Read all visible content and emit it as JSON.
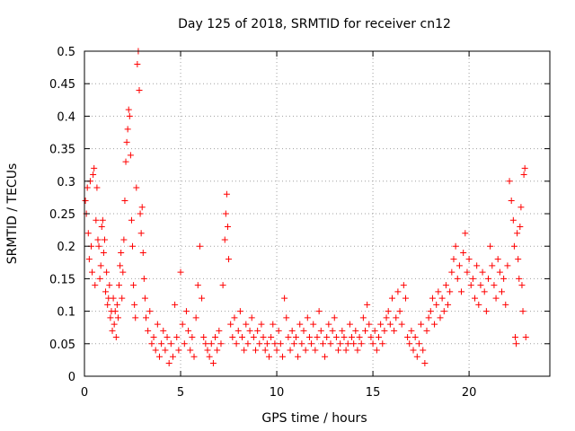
{
  "chart_data": {
    "type": "scatter",
    "title": "Day 125 of 2018, SRMTID for receiver cn12",
    "xlabel": "GPS time / hours",
    "ylabel": "SRMTID / TECUs",
    "xlim": [
      0,
      24.2
    ],
    "ylim": [
      0,
      0.5
    ],
    "xticks": [
      0,
      5,
      10,
      15,
      20
    ],
    "yticks": [
      0,
      0.05,
      0.1,
      0.15,
      0.2,
      0.25,
      0.3,
      0.35,
      0.4,
      0.45,
      0.5
    ],
    "xtick_labels": [
      "0",
      "5",
      "10",
      "15",
      "20"
    ],
    "ytick_labels": [
      "0",
      "0.05",
      "0.1",
      "0.15",
      "0.2",
      "0.25",
      "0.3",
      "0.35",
      "0.4",
      "0.45",
      "0.5"
    ],
    "grid": true,
    "marker": "+",
    "color": "#ff0000",
    "series": [
      {
        "name": "SRMTID",
        "points": [
          [
            0.05,
            0.27
          ],
          [
            0.1,
            0.25
          ],
          [
            0.15,
            0.29
          ],
          [
            0.2,
            0.22
          ],
          [
            0.25,
            0.18
          ],
          [
            0.3,
            0.3
          ],
          [
            0.35,
            0.2
          ],
          [
            0.4,
            0.16
          ],
          [
            0.45,
            0.31
          ],
          [
            0.5,
            0.32
          ],
          [
            0.55,
            0.14
          ],
          [
            0.6,
            0.24
          ],
          [
            0.65,
            0.29
          ],
          [
            0.7,
            0.21
          ],
          [
            0.75,
            0.2
          ],
          [
            0.8,
            0.15
          ],
          [
            0.85,
            0.17
          ],
          [
            0.9,
            0.23
          ],
          [
            0.95,
            0.24
          ],
          [
            1.0,
            0.19
          ],
          [
            1.05,
            0.21
          ],
          [
            1.1,
            0.13
          ],
          [
            1.15,
            0.16
          ],
          [
            1.2,
            0.11
          ],
          [
            1.25,
            0.12
          ],
          [
            1.3,
            0.14
          ],
          [
            1.35,
            0.09
          ],
          [
            1.4,
            0.1
          ],
          [
            1.45,
            0.07
          ],
          [
            1.5,
            0.12
          ],
          [
            1.55,
            0.08
          ],
          [
            1.6,
            0.1
          ],
          [
            1.65,
            0.06
          ],
          [
            1.7,
            0.11
          ],
          [
            1.75,
            0.09
          ],
          [
            1.8,
            0.14
          ],
          [
            1.85,
            0.17
          ],
          [
            1.9,
            0.19
          ],
          [
            1.95,
            0.12
          ],
          [
            2.0,
            0.16
          ],
          [
            2.05,
            0.21
          ],
          [
            2.1,
            0.27
          ],
          [
            2.15,
            0.33
          ],
          [
            2.2,
            0.36
          ],
          [
            2.25,
            0.38
          ],
          [
            2.3,
            0.41
          ],
          [
            2.35,
            0.4
          ],
          [
            2.4,
            0.34
          ],
          [
            2.45,
            0.24
          ],
          [
            2.5,
            0.2
          ],
          [
            2.55,
            0.14
          ],
          [
            2.6,
            0.11
          ],
          [
            2.65,
            0.09
          ],
          [
            2.7,
            0.29
          ],
          [
            2.75,
            0.48
          ],
          [
            2.8,
            0.5
          ],
          [
            2.85,
            0.44
          ],
          [
            2.9,
            0.25
          ],
          [
            2.95,
            0.22
          ],
          [
            3.0,
            0.26
          ],
          [
            3.05,
            0.19
          ],
          [
            3.1,
            0.15
          ],
          [
            3.15,
            0.12
          ],
          [
            3.2,
            0.09
          ],
          [
            3.3,
            0.07
          ],
          [
            3.4,
            0.1
          ],
          [
            3.5,
            0.05
          ],
          [
            3.6,
            0.06
          ],
          [
            3.7,
            0.04
          ],
          [
            3.8,
            0.08
          ],
          [
            3.9,
            0.03
          ],
          [
            4.0,
            0.05
          ],
          [
            4.1,
            0.07
          ],
          [
            4.2,
            0.04
          ],
          [
            4.3,
            0.06
          ],
          [
            4.4,
            0.02
          ],
          [
            4.5,
            0.05
          ],
          [
            4.6,
            0.03
          ],
          [
            4.7,
            0.11
          ],
          [
            4.8,
            0.06
          ],
          [
            4.9,
            0.04
          ],
          [
            5.0,
            0.16
          ],
          [
            5.1,
            0.08
          ],
          [
            5.2,
            0.05
          ],
          [
            5.3,
            0.1
          ],
          [
            5.4,
            0.07
          ],
          [
            5.5,
            0.04
          ],
          [
            5.6,
            0.06
          ],
          [
            5.7,
            0.03
          ],
          [
            5.8,
            0.09
          ],
          [
            5.9,
            0.14
          ],
          [
            6.0,
            0.2
          ],
          [
            6.1,
            0.12
          ],
          [
            6.2,
            0.06
          ],
          [
            6.3,
            0.05
          ],
          [
            6.4,
            0.04
          ],
          [
            6.5,
            0.03
          ],
          [
            6.6,
            0.05
          ],
          [
            6.7,
            0.02
          ],
          [
            6.8,
            0.06
          ],
          [
            6.9,
            0.04
          ],
          [
            7.0,
            0.07
          ],
          [
            7.1,
            0.05
          ],
          [
            7.2,
            0.14
          ],
          [
            7.3,
            0.21
          ],
          [
            7.35,
            0.25
          ],
          [
            7.4,
            0.28
          ],
          [
            7.45,
            0.23
          ],
          [
            7.5,
            0.18
          ],
          [
            7.6,
            0.08
          ],
          [
            7.7,
            0.06
          ],
          [
            7.8,
            0.09
          ],
          [
            7.9,
            0.05
          ],
          [
            8.0,
            0.07
          ],
          [
            8.1,
            0.1
          ],
          [
            8.2,
            0.06
          ],
          [
            8.3,
            0.04
          ],
          [
            8.4,
            0.08
          ],
          [
            8.5,
            0.05
          ],
          [
            8.6,
            0.07
          ],
          [
            8.7,
            0.09
          ],
          [
            8.8,
            0.06
          ],
          [
            8.9,
            0.04
          ],
          [
            9.0,
            0.07
          ],
          [
            9.1,
            0.05
          ],
          [
            9.2,
            0.08
          ],
          [
            9.3,
            0.06
          ],
          [
            9.4,
            0.04
          ],
          [
            9.5,
            0.05
          ],
          [
            9.6,
            0.03
          ],
          [
            9.7,
            0.06
          ],
          [
            9.8,
            0.08
          ],
          [
            9.9,
            0.05
          ],
          [
            10.0,
            0.04
          ],
          [
            10.1,
            0.07
          ],
          [
            10.2,
            0.05
          ],
          [
            10.3,
            0.03
          ],
          [
            10.4,
            0.12
          ],
          [
            10.5,
            0.09
          ],
          [
            10.6,
            0.06
          ],
          [
            10.7,
            0.04
          ],
          [
            10.8,
            0.07
          ],
          [
            10.9,
            0.05
          ],
          [
            11.0,
            0.06
          ],
          [
            11.1,
            0.03
          ],
          [
            11.2,
            0.08
          ],
          [
            11.3,
            0.05
          ],
          [
            11.4,
            0.07
          ],
          [
            11.5,
            0.04
          ],
          [
            11.6,
            0.09
          ],
          [
            11.7,
            0.06
          ],
          [
            11.8,
            0.05
          ],
          [
            11.9,
            0.08
          ],
          [
            12.0,
            0.04
          ],
          [
            12.1,
            0.06
          ],
          [
            12.2,
            0.1
          ],
          [
            12.3,
            0.07
          ],
          [
            12.4,
            0.05
          ],
          [
            12.5,
            0.03
          ],
          [
            12.6,
            0.06
          ],
          [
            12.7,
            0.08
          ],
          [
            12.8,
            0.05
          ],
          [
            12.9,
            0.07
          ],
          [
            13.0,
            0.09
          ],
          [
            13.1,
            0.06
          ],
          [
            13.2,
            0.04
          ],
          [
            13.3,
            0.05
          ],
          [
            13.4,
            0.07
          ],
          [
            13.5,
            0.06
          ],
          [
            13.6,
            0.04
          ],
          [
            13.7,
            0.05
          ],
          [
            13.8,
            0.08
          ],
          [
            13.9,
            0.06
          ],
          [
            14.0,
            0.05
          ],
          [
            14.1,
            0.07
          ],
          [
            14.2,
            0.04
          ],
          [
            14.3,
            0.06
          ],
          [
            14.4,
            0.05
          ],
          [
            14.5,
            0.09
          ],
          [
            14.6,
            0.07
          ],
          [
            14.7,
            0.11
          ],
          [
            14.8,
            0.08
          ],
          [
            14.9,
            0.06
          ],
          [
            15.0,
            0.05
          ],
          [
            15.1,
            0.07
          ],
          [
            15.2,
            0.04
          ],
          [
            15.3,
            0.06
          ],
          [
            15.4,
            0.08
          ],
          [
            15.5,
            0.05
          ],
          [
            15.6,
            0.07
          ],
          [
            15.7,
            0.09
          ],
          [
            15.8,
            0.1
          ],
          [
            15.9,
            0.08
          ],
          [
            16.0,
            0.12
          ],
          [
            16.1,
            0.07
          ],
          [
            16.2,
            0.09
          ],
          [
            16.3,
            0.13
          ],
          [
            16.4,
            0.1
          ],
          [
            16.5,
            0.08
          ],
          [
            16.6,
            0.14
          ],
          [
            16.7,
            0.12
          ],
          [
            16.8,
            0.06
          ],
          [
            16.9,
            0.05
          ],
          [
            17.0,
            0.07
          ],
          [
            17.1,
            0.04
          ],
          [
            17.2,
            0.06
          ],
          [
            17.3,
            0.03
          ],
          [
            17.4,
            0.05
          ],
          [
            17.5,
            0.08
          ],
          [
            17.6,
            0.04
          ],
          [
            17.7,
            0.02
          ],
          [
            17.8,
            0.07
          ],
          [
            17.9,
            0.09
          ],
          [
            18.0,
            0.1
          ],
          [
            18.1,
            0.12
          ],
          [
            18.2,
            0.08
          ],
          [
            18.3,
            0.11
          ],
          [
            18.4,
            0.13
          ],
          [
            18.5,
            0.09
          ],
          [
            18.6,
            0.12
          ],
          [
            18.7,
            0.1
          ],
          [
            18.8,
            0.14
          ],
          [
            18.9,
            0.11
          ],
          [
            19.0,
            0.13
          ],
          [
            19.1,
            0.16
          ],
          [
            19.2,
            0.18
          ],
          [
            19.3,
            0.2
          ],
          [
            19.4,
            0.15
          ],
          [
            19.5,
            0.17
          ],
          [
            19.6,
            0.13
          ],
          [
            19.7,
            0.19
          ],
          [
            19.8,
            0.22
          ],
          [
            19.9,
            0.16
          ],
          [
            20.0,
            0.18
          ],
          [
            20.1,
            0.14
          ],
          [
            20.2,
            0.15
          ],
          [
            20.3,
            0.12
          ],
          [
            20.4,
            0.17
          ],
          [
            20.5,
            0.11
          ],
          [
            20.6,
            0.14
          ],
          [
            20.7,
            0.16
          ],
          [
            20.8,
            0.13
          ],
          [
            20.9,
            0.1
          ],
          [
            21.0,
            0.15
          ],
          [
            21.1,
            0.2
          ],
          [
            21.2,
            0.17
          ],
          [
            21.3,
            0.14
          ],
          [
            21.4,
            0.12
          ],
          [
            21.5,
            0.18
          ],
          [
            21.6,
            0.16
          ],
          [
            21.7,
            0.13
          ],
          [
            21.8,
            0.15
          ],
          [
            21.9,
            0.11
          ],
          [
            22.0,
            0.17
          ],
          [
            22.1,
            0.3
          ],
          [
            22.2,
            0.27
          ],
          [
            22.3,
            0.24
          ],
          [
            22.35,
            0.2
          ],
          [
            22.4,
            0.06
          ],
          [
            22.45,
            0.05
          ],
          [
            22.5,
            0.22
          ],
          [
            22.55,
            0.18
          ],
          [
            22.6,
            0.15
          ],
          [
            22.65,
            0.23
          ],
          [
            22.7,
            0.26
          ],
          [
            22.75,
            0.14
          ],
          [
            22.8,
            0.1
          ],
          [
            22.85,
            0.31
          ],
          [
            22.9,
            0.32
          ],
          [
            22.95,
            0.06
          ]
        ]
      }
    ]
  }
}
